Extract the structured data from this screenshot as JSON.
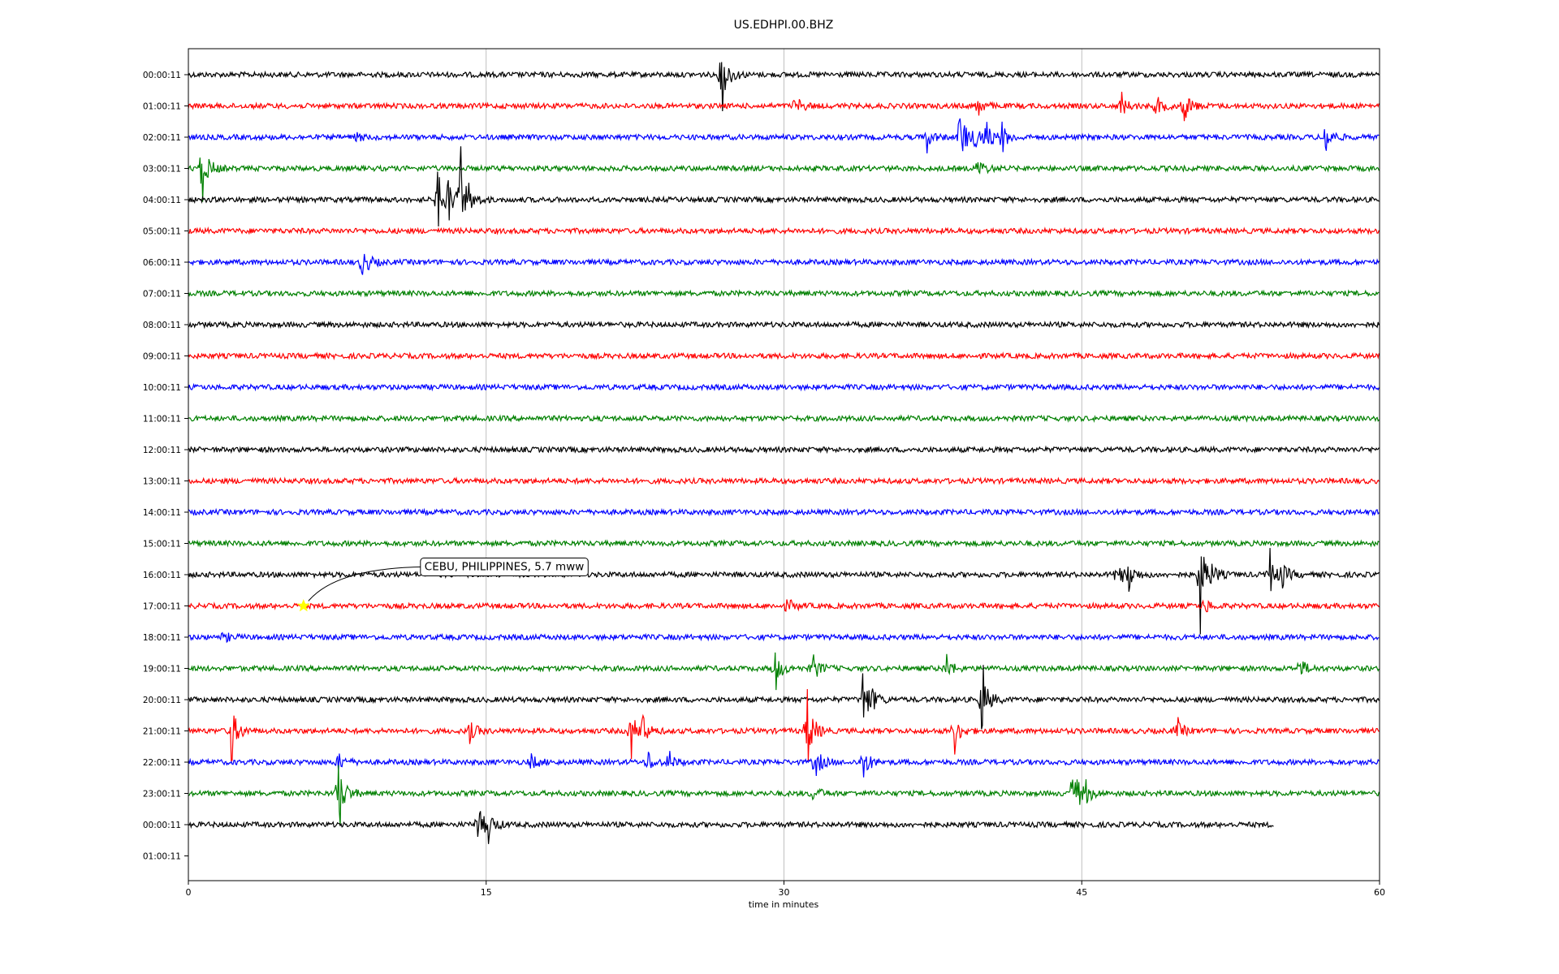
{
  "chart_data": {
    "type": "line",
    "title": "US.EDHPI.00.BHZ",
    "xlabel": "time in minutes",
    "ylabel": "",
    "xlim": [
      0,
      60
    ],
    "x_ticks": [
      0,
      15,
      30,
      45,
      60
    ],
    "grid": "vertical",
    "row_labels": [
      "00:00:11",
      "01:00:11",
      "02:00:11",
      "03:00:11",
      "04:00:11",
      "05:00:11",
      "06:00:11",
      "07:00:11",
      "08:00:11",
      "09:00:11",
      "10:00:11",
      "11:00:11",
      "12:00:11",
      "13:00:11",
      "14:00:11",
      "15:00:11",
      "16:00:11",
      "17:00:11",
      "18:00:11",
      "19:00:11",
      "20:00:11",
      "21:00:11",
      "22:00:11",
      "23:00:11",
      "00:00:11",
      "01:00:11"
    ],
    "trace_colors": [
      "#000000",
      "#ff0000",
      "#0000ff",
      "#008000"
    ],
    "trace_end_minutes": [
      60,
      60,
      60,
      60,
      60,
      60,
      60,
      60,
      60,
      60,
      60,
      60,
      60,
      60,
      60,
      60,
      60,
      60,
      60,
      60,
      60,
      60,
      60,
      60,
      54.7
    ],
    "bursts": [
      {
        "row": 0,
        "t": 26.9,
        "amp": 1.1
      },
      {
        "row": 1,
        "t": 30.6,
        "amp": 0.4
      },
      {
        "row": 1,
        "t": 39.8,
        "amp": 0.3
      },
      {
        "row": 1,
        "t": 47.0,
        "amp": 0.4
      },
      {
        "row": 1,
        "t": 48.8,
        "amp": 0.4
      },
      {
        "row": 1,
        "t": 50.2,
        "amp": 0.6
      },
      {
        "row": 2,
        "t": 8.4,
        "amp": 0.2
      },
      {
        "row": 2,
        "t": 37.2,
        "amp": 0.4
      },
      {
        "row": 2,
        "t": 38.9,
        "amp": 1.2
      },
      {
        "row": 2,
        "t": 39.7,
        "amp": 0.6
      },
      {
        "row": 2,
        "t": 40.2,
        "amp": 0.6
      },
      {
        "row": 2,
        "t": 41.0,
        "amp": 0.5
      },
      {
        "row": 2,
        "t": 57.3,
        "amp": 0.5
      },
      {
        "row": 3,
        "t": 0.7,
        "amp": 1.0
      },
      {
        "row": 3,
        "t": 39.8,
        "amp": 0.4
      },
      {
        "row": 4,
        "t": 12.6,
        "amp": 0.8
      },
      {
        "row": 4,
        "t": 13.1,
        "amp": 0.8
      },
      {
        "row": 4,
        "t": 13.7,
        "amp": 1.6
      },
      {
        "row": 4,
        "t": 14.1,
        "amp": 0.6
      },
      {
        "row": 6,
        "t": 8.8,
        "amp": 0.6
      },
      {
        "row": 16,
        "t": 46.8,
        "amp": 0.6
      },
      {
        "row": 16,
        "t": 47.4,
        "amp": 0.5
      },
      {
        "row": 16,
        "t": 51.0,
        "amp": 1.7
      },
      {
        "row": 16,
        "t": 51.6,
        "amp": 0.4
      },
      {
        "row": 16,
        "t": 54.5,
        "amp": 0.7
      },
      {
        "row": 16,
        "t": 55.1,
        "amp": 0.5
      },
      {
        "row": 17,
        "t": 30.2,
        "amp": 0.3
      },
      {
        "row": 17,
        "t": 51.2,
        "amp": 0.3
      },
      {
        "row": 18,
        "t": 1.8,
        "amp": 0.2
      },
      {
        "row": 19,
        "t": 29.6,
        "amp": 0.6
      },
      {
        "row": 19,
        "t": 31.5,
        "amp": 0.5
      },
      {
        "row": 19,
        "t": 38.2,
        "amp": 0.4
      },
      {
        "row": 19,
        "t": 56.0,
        "amp": 0.4
      },
      {
        "row": 20,
        "t": 34.0,
        "amp": 0.8
      },
      {
        "row": 20,
        "t": 34.3,
        "amp": 0.8
      },
      {
        "row": 20,
        "t": 40.0,
        "amp": 1.0
      },
      {
        "row": 21,
        "t": 2.2,
        "amp": 0.9
      },
      {
        "row": 21,
        "t": 14.2,
        "amp": 0.4
      },
      {
        "row": 21,
        "t": 22.3,
        "amp": 0.8
      },
      {
        "row": 21,
        "t": 22.9,
        "amp": 0.5
      },
      {
        "row": 21,
        "t": 31.2,
        "amp": 1.2
      },
      {
        "row": 21,
        "t": 38.6,
        "amp": 0.6
      },
      {
        "row": 21,
        "t": 49.8,
        "amp": 0.4
      },
      {
        "row": 22,
        "t": 7.6,
        "amp": 0.3
      },
      {
        "row": 22,
        "t": 17.3,
        "amp": 0.3
      },
      {
        "row": 22,
        "t": 23.2,
        "amp": 0.3
      },
      {
        "row": 22,
        "t": 24.2,
        "amp": 0.3
      },
      {
        "row": 22,
        "t": 31.6,
        "amp": 0.6
      },
      {
        "row": 22,
        "t": 34.0,
        "amp": 0.6
      },
      {
        "row": 23,
        "t": 7.6,
        "amp": 1.1
      },
      {
        "row": 23,
        "t": 31.5,
        "amp": 0.3
      },
      {
        "row": 23,
        "t": 44.6,
        "amp": 1.2
      },
      {
        "row": 23,
        "t": 45.2,
        "amp": 0.5
      },
      {
        "row": 24,
        "t": 14.6,
        "amp": 0.8
      },
      {
        "row": 24,
        "t": 15.1,
        "amp": 0.6
      }
    ],
    "events": [
      {
        "label": "CEBU, PHILIPPINES, 5.7 mww",
        "row": 17,
        "t": 5.8,
        "marker": "star",
        "marker_color": "#ffff00"
      }
    ]
  }
}
